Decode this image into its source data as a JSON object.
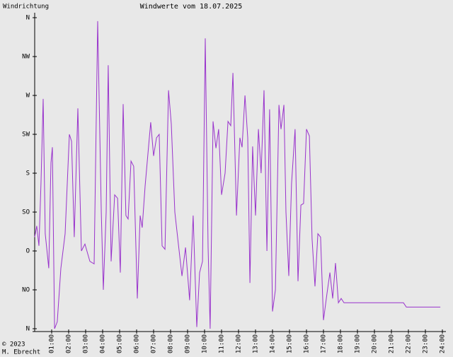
{
  "chart_data": {
    "type": "line",
    "title": "Windwerte vom 18.07.2025",
    "y_label": "Windrichtung",
    "footer": [
      "© 2023",
      "M. Ebrecht"
    ],
    "color": "#9933cc",
    "xlim": [
      0,
      24
    ],
    "ylim": [
      0,
      360
    ],
    "xticks": [
      {
        "value": 1,
        "label": "01:00"
      },
      {
        "value": 2,
        "label": "02:00"
      },
      {
        "value": 3,
        "label": "03:00"
      },
      {
        "value": 4,
        "label": "04:00"
      },
      {
        "value": 5,
        "label": "05:00"
      },
      {
        "value": 6,
        "label": "06:00"
      },
      {
        "value": 7,
        "label": "07:00"
      },
      {
        "value": 8,
        "label": "08:00"
      },
      {
        "value": 9,
        "label": "09:00"
      },
      {
        "value": 10,
        "label": "10:00"
      },
      {
        "value": 11,
        "label": "11:00"
      },
      {
        "value": 12,
        "label": "12:00"
      },
      {
        "value": 13,
        "label": "13:00"
      },
      {
        "value": 14,
        "label": "14:00"
      },
      {
        "value": 15,
        "label": "15:00"
      },
      {
        "value": 16,
        "label": "16:00"
      },
      {
        "value": 17,
        "label": "17:00"
      },
      {
        "value": 18,
        "label": "18:00"
      },
      {
        "value": 19,
        "label": "19:00"
      },
      {
        "value": 20,
        "label": "20:00"
      },
      {
        "value": 21,
        "label": "21:00"
      },
      {
        "value": 22,
        "label": "22:00"
      },
      {
        "value": 23,
        "label": "23:00"
      },
      {
        "value": 24,
        "label": "24:00"
      }
    ],
    "yticks": [
      {
        "value": 0,
        "label": "N"
      },
      {
        "value": 45,
        "label": "NO"
      },
      {
        "value": 90,
        "label": "O"
      },
      {
        "value": 135,
        "label": "SO"
      },
      {
        "value": 180,
        "label": "S"
      },
      {
        "value": 225,
        "label": "SW"
      },
      {
        "value": 270,
        "label": "W"
      },
      {
        "value": 315,
        "label": "NW"
      },
      {
        "value": 360,
        "label": "N"
      }
    ],
    "x": [
      0,
      0.12,
      0.25,
      0.37,
      0.5,
      0.62,
      0.83,
      0.96,
      1.04,
      1.17,
      1.33,
      1.54,
      1.79,
      2.04,
      2.17,
      2.33,
      2.54,
      2.75,
      2.96,
      3.25,
      3.5,
      3.71,
      3.92,
      4.04,
      4.21,
      4.33,
      4.5,
      4.71,
      4.88,
      5.04,
      5.21,
      5.37,
      5.5,
      5.67,
      5.83,
      6.04,
      6.21,
      6.33,
      6.5,
      6.83,
      7,
      7.17,
      7.33,
      7.5,
      7.67,
      7.88,
      8.04,
      8.25,
      8.46,
      8.67,
      8.88,
      9.12,
      9.33,
      9.54,
      9.71,
      9.88,
      10.04,
      10.21,
      10.33,
      10.5,
      10.67,
      10.83,
      11,
      11.21,
      11.38,
      11.54,
      11.67,
      11.88,
      12.08,
      12.21,
      12.38,
      12.54,
      12.67,
      12.83,
      13,
      13.17,
      13.33,
      13.5,
      13.67,
      13.83,
      14,
      14.17,
      14.38,
      14.5,
      14.67,
      14.79,
      14.96,
      15.12,
      15.33,
      15.5,
      15.67,
      15.83,
      16,
      16.17,
      16.33,
      16.5,
      16.67,
      16.83,
      17,
      17.21,
      17.38,
      17.54,
      17.71,
      17.88,
      18.04,
      18.21,
      21.71,
      21.88,
      23.88
    ],
    "values": [
      106,
      119,
      96,
      168,
      266,
      110,
      70,
      192,
      210,
      0,
      8,
      70,
      110,
      225,
      217,
      106,
      255,
      90,
      98,
      78,
      75,
      356,
      135,
      45,
      135,
      305,
      78,
      155,
      151,
      65,
      260,
      131,
      127,
      194,
      188,
      35,
      131,
      117,
      165,
      239,
      200,
      221,
      225,
      96,
      92,
      276,
      237,
      135,
      98,
      61,
      94,
      33,
      131,
      2,
      65,
      78,
      336,
      94,
      0,
      240,
      209,
      231,
      155,
      180,
      240,
      235,
      296,
      131,
      221,
      210,
      270,
      221,
      53,
      211,
      131,
      231,
      180,
      276,
      90,
      254,
      20,
      45,
      259,
      231,
      259,
      135,
      61,
      168,
      231,
      55,
      143,
      145,
      231,
      223,
      104,
      49,
      110,
      106,
      10,
      41,
      65,
      35,
      76,
      30,
      35,
      30,
      30,
      25,
      25
    ]
  }
}
